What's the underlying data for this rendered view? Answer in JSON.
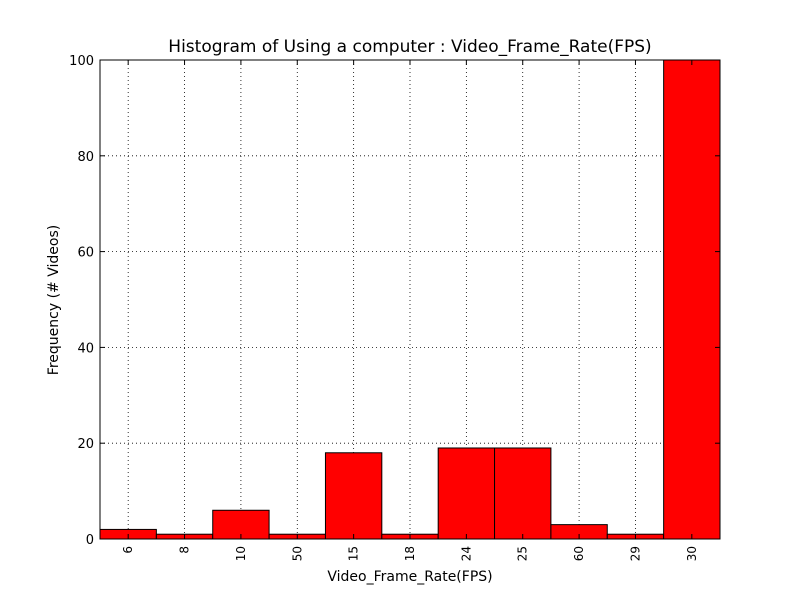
{
  "chart_data": {
    "type": "bar",
    "title": "Histogram of Using a computer : Video_Frame_Rate(FPS)",
    "xlabel": "Video_Frame_Rate(FPS)",
    "ylabel": "Frequency (# Videos)",
    "categories": [
      "6",
      "8",
      "10",
      "50",
      "15",
      "18",
      "24",
      "25",
      "60",
      "29",
      "30"
    ],
    "values": [
      2,
      1,
      6,
      1,
      18,
      1,
      19,
      19,
      3,
      1,
      100
    ],
    "ylim": [
      0,
      100
    ],
    "yticks": [
      "0",
      "20",
      "40",
      "60",
      "80",
      "100"
    ],
    "ytick_values": [
      0,
      20,
      40,
      60,
      80,
      100
    ],
    "bar_color": "#ff0000",
    "grid": true,
    "xtick_rotation": "vertical"
  }
}
